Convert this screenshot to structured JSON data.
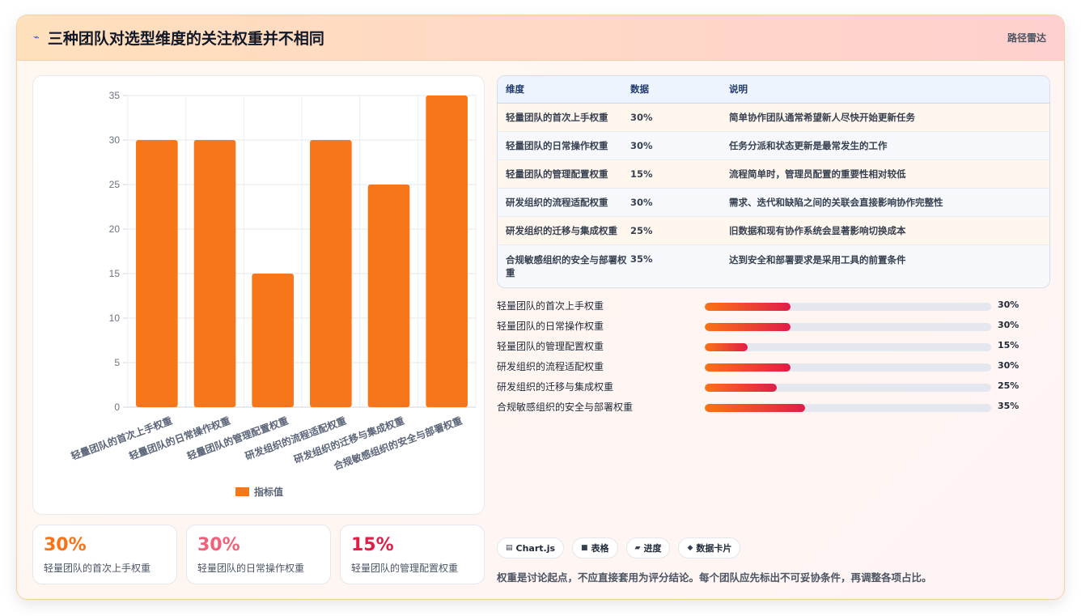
{
  "header": {
    "icon": "wave-icon",
    "title": "三种团队对选型维度的关注权重并不相同",
    "link": "路径雷达"
  },
  "chart_data": {
    "type": "bar",
    "categories": [
      "轻量团队的首次上手权重",
      "轻量团队的日常操作权重",
      "轻量团队的管理配置权重",
      "研发组织的流程适配权重",
      "研发组织的迁移与集成权重",
      "合规敏感组织的安全与部署权重"
    ],
    "series": [
      {
        "name": "指标值",
        "values": [
          30,
          30,
          15,
          30,
          25,
          35
        ]
      }
    ],
    "ylim": [
      0,
      35
    ],
    "yticks": [
      0,
      5,
      10,
      15,
      20,
      25,
      30,
      35
    ],
    "grid": true,
    "legend": "bottom",
    "bar_color": "#f8761a",
    "title": "",
    "xlabel": "",
    "ylabel": ""
  },
  "stats": [
    {
      "value": "30%",
      "label": "轻量团队的首次上手权重",
      "color": "#f97316"
    },
    {
      "value": "30%",
      "label": "轻量团队的日常操作权重",
      "color": "#f2617a"
    },
    {
      "value": "15%",
      "label": "轻量团队的管理配置权重",
      "color": "#e11d48"
    }
  ],
  "table": {
    "headers": [
      "维度",
      "数据",
      "说明"
    ],
    "rows": [
      [
        "轻量团队的首次上手权重",
        "30%",
        "简单协作团队通常希望新人尽快开始更新任务"
      ],
      [
        "轻量团队的日常操作权重",
        "30%",
        "任务分派和状态更新是最常发生的工作"
      ],
      [
        "轻量团队的管理配置权重",
        "15%",
        "流程简单时，管理员配置的重要性相对较低"
      ],
      [
        "研发组织的流程适配权重",
        "30%",
        "需求、迭代和缺陷之间的关联会直接影响协作完整性"
      ],
      [
        "研发组织的迁移与集成权重",
        "25%",
        "旧数据和现有协作系统会显著影响切换成本"
      ],
      [
        "合规敏感组织的安全与部署权重",
        "35%",
        "达到安全和部署要求是采用工具的前置条件"
      ]
    ]
  },
  "progress": [
    {
      "label": "轻量团队的首次上手权重",
      "value": "30%",
      "pct": 30
    },
    {
      "label": "轻量团队的日常操作权重",
      "value": "30%",
      "pct": 30
    },
    {
      "label": "轻量团队的管理配置权重",
      "value": "15%",
      "pct": 15
    },
    {
      "label": "研发组织的流程适配权重",
      "value": "30%",
      "pct": 30
    },
    {
      "label": "研发组织的迁移与集成权重",
      "value": "25%",
      "pct": 25
    },
    {
      "label": "合规敏感组织的安全与部署权重",
      "value": "35%",
      "pct": 35
    }
  ],
  "chips": [
    {
      "icon": "chart-icon",
      "glyph": "▤",
      "label": "Chart.js"
    },
    {
      "icon": "table-icon",
      "glyph": "■",
      "label": "表格"
    },
    {
      "icon": "progress-icon",
      "glyph": "▰",
      "label": "进度"
    },
    {
      "icon": "card-icon",
      "glyph": "◆",
      "label": "数据卡片"
    }
  ],
  "note": "权重是讨论起点，不应直接套用为评分结论。每个团队应先标出不可妥协条件，再调整各项占比。"
}
